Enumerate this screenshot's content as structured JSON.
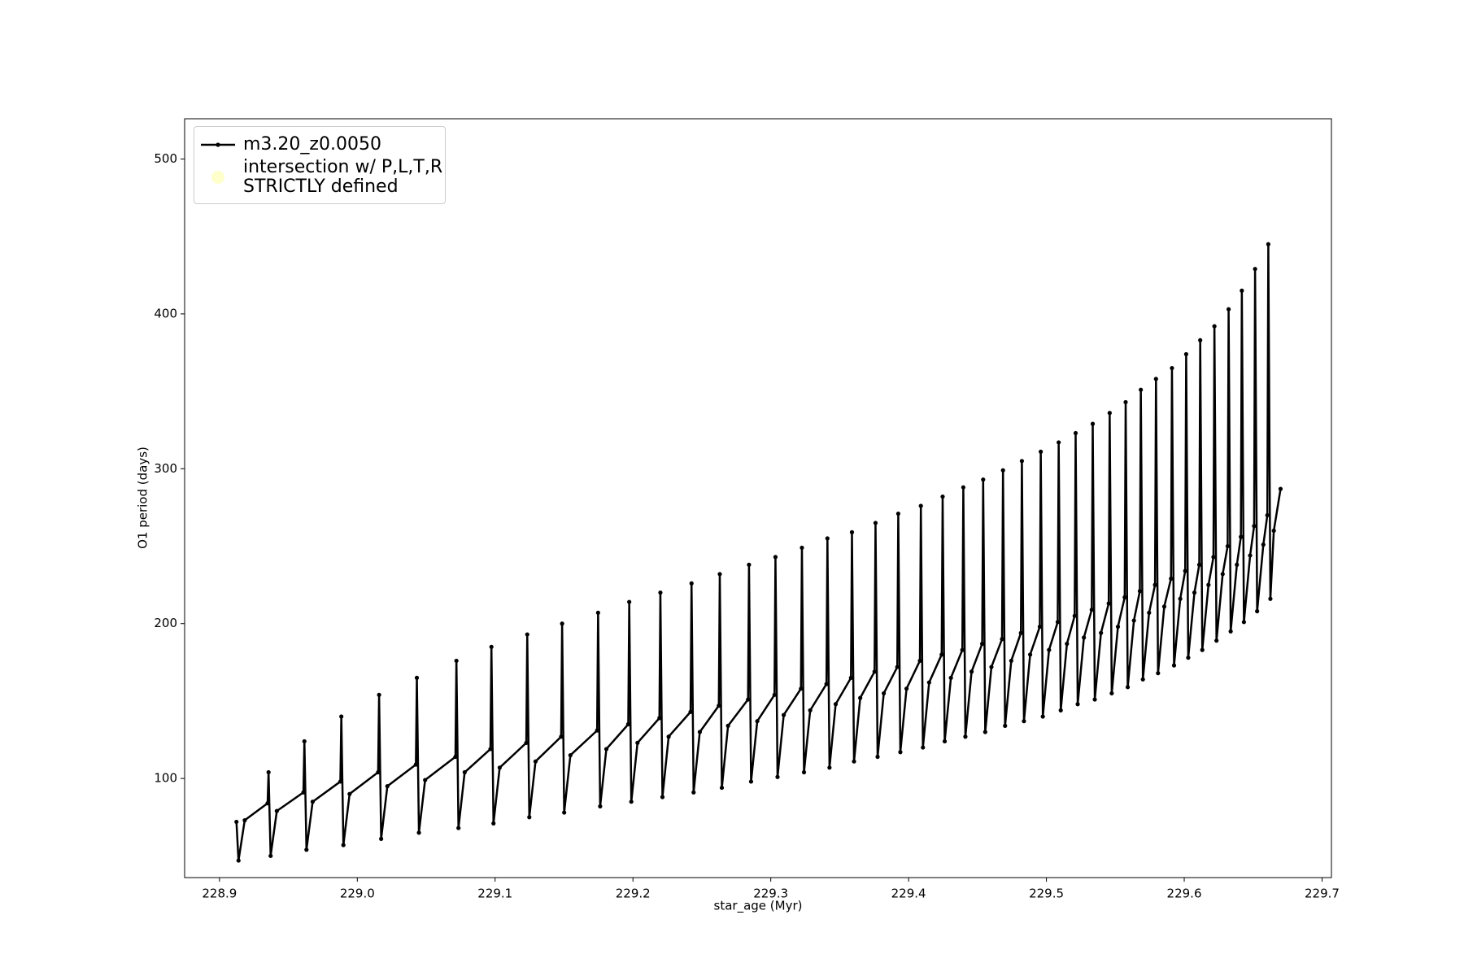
{
  "chart_data": {
    "type": "line",
    "xlabel": "star_age (Myr)",
    "ylabel": "O1 period (days)",
    "xlim": [
      228.8747,
      229.7068
    ],
    "ylim": [
      36,
      526
    ],
    "xticks": [
      228.9,
      {
        "value": 229.0,
        "label": "229.0"
      },
      229.1,
      229.2,
      229.3,
      229.4,
      229.5,
      229.6,
      229.7
    ],
    "yticks": [
      100,
      200,
      300,
      400,
      500
    ],
    "legend": "upper left",
    "series": [
      {
        "name": "m3.20_z0.0050",
        "color": "#000000",
        "marker": "dot",
        "x": [
          228.9123,
          228.9138,
          228.9183,
          228.9349,
          228.9356,
          228.9371,
          228.9416,
          228.9609,
          228.9616,
          228.9631,
          228.9676,
          228.9877,
          228.9884,
          228.9899,
          228.9944,
          229.0151,
          229.0158,
          229.0173,
          229.0218,
          229.0425,
          229.0432,
          229.0447,
          229.0492,
          229.0712,
          229.0719,
          229.0734,
          229.0779,
          229.0966,
          229.0973,
          229.0988,
          229.1033,
          229.1226,
          229.1233,
          229.1248,
          229.1293,
          229.1479,
          229.1486,
          229.1501,
          229.1546,
          229.174,
          229.1747,
          229.1762,
          229.1807,
          229.1966,
          229.1973,
          229.1988,
          229.2033,
          229.2192,
          229.2199,
          229.2214,
          229.2259,
          229.2418,
          229.2425,
          229.244,
          229.2485,
          229.2623,
          229.263,
          229.2645,
          229.269,
          229.2835,
          229.2842,
          229.2857,
          229.2902,
          229.3027,
          229.3034,
          229.3049,
          229.3094,
          229.3219,
          229.3226,
          229.3241,
          229.3286,
          229.3404,
          229.3411,
          229.3426,
          229.3471,
          229.3582,
          229.3589,
          229.3604,
          229.3649,
          229.3753,
          229.376,
          229.3775,
          229.382,
          229.3918,
          229.3925,
          229.394,
          229.3985,
          229.4082,
          229.4089,
          229.4104,
          229.4149,
          229.424,
          229.4247,
          229.4262,
          229.4307,
          229.439,
          229.4397,
          229.4412,
          229.4457,
          229.4534,
          229.4541,
          229.4556,
          229.4601,
          229.4678,
          229.4685,
          229.47,
          229.4745,
          229.4815,
          229.4822,
          229.4837,
          229.4882,
          229.4952,
          229.4959,
          229.4974,
          229.5019,
          229.5082,
          229.5089,
          229.5104,
          229.5149,
          229.5205,
          229.5212,
          229.5227,
          229.5272,
          229.5329,
          229.5336,
          229.5351,
          229.5396,
          229.5452,
          229.5459,
          229.5474,
          229.5519,
          229.5568,
          229.5575,
          229.559,
          229.5635,
          229.5678,
          229.5685,
          229.57,
          229.5745,
          229.5788,
          229.5795,
          229.581,
          229.5855,
          229.5904,
          229.5911,
          229.5926,
          229.5971,
          229.6007,
          229.6014,
          229.6029,
          229.6074,
          229.6109,
          229.6116,
          229.6131,
          229.6176,
          229.6212,
          229.6219,
          229.6234,
          229.6279,
          229.6315,
          229.6322,
          229.6337,
          229.6382,
          229.6411,
          229.6418,
          229.6433,
          229.6478,
          229.6507,
          229.6514,
          229.6529,
          229.6574,
          229.6603,
          229.661,
          229.6625,
          229.665,
          229.6699
        ],
        "values": [
          72,
          47,
          73,
          84,
          104,
          50,
          79,
          91,
          124,
          54,
          85,
          98,
          140,
          57,
          90,
          104,
          154,
          61,
          95,
          109,
          165,
          65,
          99,
          114,
          176,
          68,
          104,
          119,
          185,
          71,
          107,
          123,
          193,
          75,
          111,
          127,
          200,
          78,
          115,
          131,
          207,
          82,
          119,
          135,
          214,
          85,
          123,
          139,
          220,
          88,
          127,
          143,
          226,
          91,
          130,
          147,
          232,
          94,
          134,
          151,
          238,
          98,
          137,
          154,
          243,
          101,
          141,
          158,
          249,
          104,
          144,
          161,
          255,
          107,
          148,
          165,
          259,
          111,
          152,
          169,
          265,
          114,
          155,
          172,
          271,
          117,
          158,
          176,
          276,
          120,
          162,
          180,
          282,
          124,
          165,
          183,
          288,
          127,
          169,
          187,
          293,
          130,
          172,
          190,
          299,
          134,
          176,
          194,
          305,
          137,
          180,
          198,
          311,
          140,
          183,
          201,
          317,
          144,
          187,
          205,
          323,
          148,
          191,
          209,
          329,
          151,
          194,
          213,
          336,
          155,
          198,
          217,
          343,
          159,
          202,
          221,
          351,
          164,
          207,
          225,
          358,
          168,
          211,
          229,
          365,
          173,
          216,
          234,
          374,
          178,
          220,
          238,
          383,
          183,
          225,
          243,
          392,
          189,
          232,
          250,
          403,
          195,
          238,
          256,
          415,
          201,
          244,
          263,
          429,
          208,
          251,
          270,
          445,
          216,
          260,
          287
        ]
      },
      {
        "name": "intersection w/ P,L,T,R\nSTRICTLY defined",
        "color": "#ffffcc",
        "marker": "circle",
        "x": [],
        "values": []
      }
    ]
  }
}
